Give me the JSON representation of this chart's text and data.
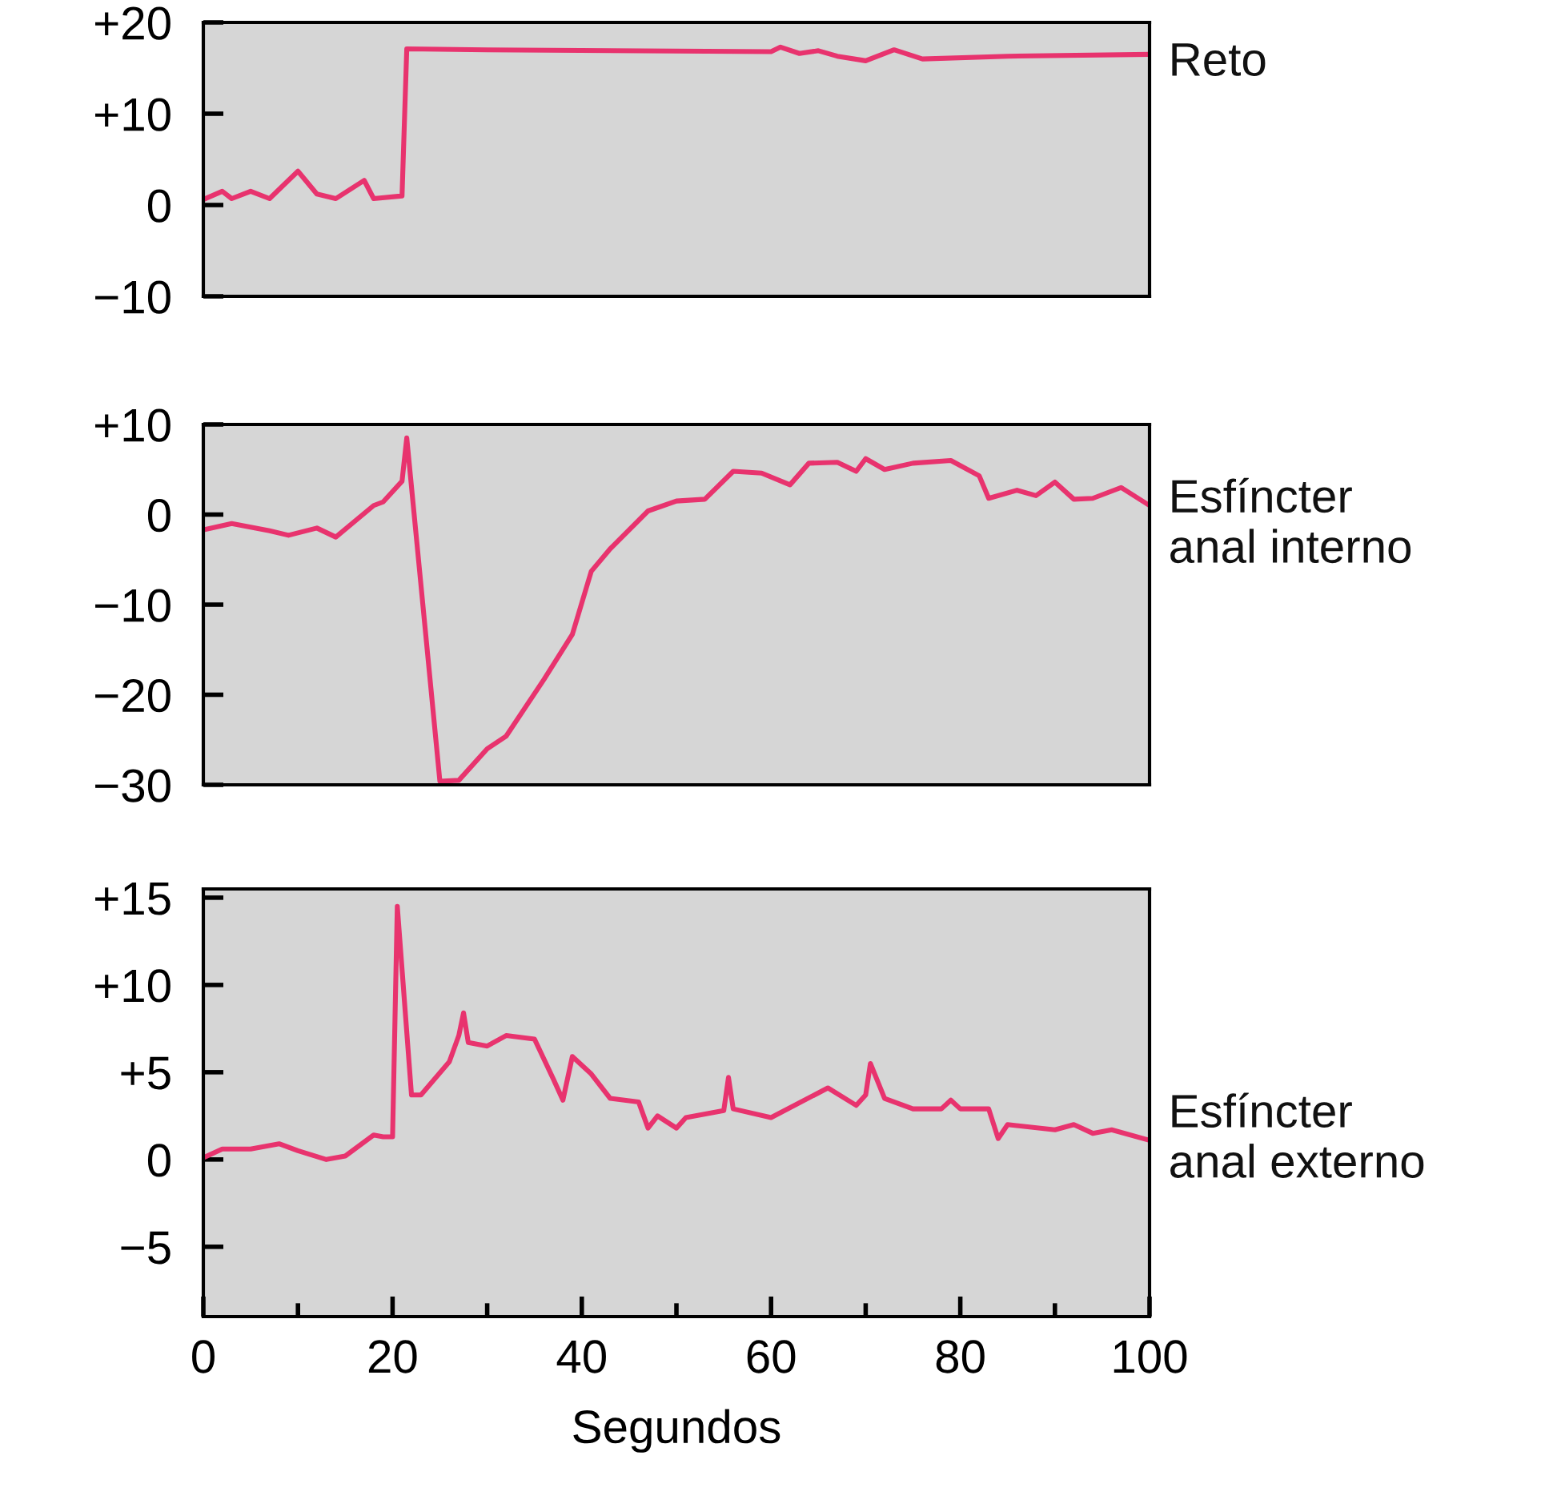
{
  "chart_data": [
    {
      "type": "line",
      "x": [
        0,
        2,
        3,
        5,
        7,
        10,
        12,
        14,
        17,
        18,
        21,
        21.5,
        30,
        60,
        61,
        63,
        65,
        67,
        70,
        73,
        76,
        85,
        100
      ],
      "series": [
        {
          "name": "Reto",
          "color": "#e8336e",
          "values": [
            0.6,
            1.5,
            0.7,
            1.5,
            0.7,
            3.7,
            1.2,
            0.7,
            2.7,
            0.7,
            1.0,
            17.1,
            17,
            16.8,
            17.3,
            16.6,
            16.9,
            16.3,
            15.8,
            17,
            16,
            16.3,
            16.5
          ]
        }
      ],
      "xlim": [
        0,
        100
      ],
      "ylim": [
        -10,
        20
      ],
      "yticks": [
        {
          "value": 20,
          "label": "+20"
        },
        {
          "value": 10,
          "label": "+10"
        },
        0,
        {
          "value": -10,
          "label": "−10"
        }
      ],
      "tick_labels": "y",
      "grid": false,
      "legend": false,
      "marker": "none",
      "line_style": "solid"
    },
    {
      "type": "line",
      "x": [
        0,
        3,
        7,
        9,
        12,
        14,
        18,
        19,
        21,
        21.5,
        25,
        27,
        30,
        32,
        36,
        39,
        41,
        43,
        47,
        50,
        53,
        56,
        59,
        62,
        64,
        67,
        69,
        70,
        72,
        75,
        79,
        82,
        83,
        86,
        88,
        90,
        92,
        94,
        97,
        100
      ],
      "series": [
        {
          "name": "Esfíncter\nanal interno",
          "color": "#e8336e",
          "values": [
            -1.7,
            -1,
            -1.8,
            -2.3,
            -1.5,
            -2.5,
            1,
            1.4,
            3.7,
            8.5,
            -29.6,
            -29.5,
            -26,
            -24.6,
            -18.3,
            -13.3,
            -6.3,
            -3.8,
            0.4,
            1.5,
            1.7,
            4.8,
            4.6,
            3.3,
            5.7,
            5.8,
            4.8,
            6.2,
            5,
            5.7,
            6,
            4.3,
            1.8,
            2.7,
            2.1,
            3.6,
            1.7,
            1.8,
            3,
            1
          ]
        }
      ],
      "xlim": [
        0,
        100
      ],
      "ylim": [
        -30,
        10
      ],
      "yticks": [
        {
          "value": 10,
          "label": "+10"
        },
        0,
        {
          "value": -10,
          "label": "−10"
        },
        {
          "value": -20,
          "label": "−20"
        },
        {
          "value": -30,
          "label": "−30"
        }
      ],
      "tick_labels": "y",
      "grid": false,
      "legend": false,
      "marker": "none",
      "line_style": "solid"
    },
    {
      "type": "line",
      "x": [
        0,
        2,
        5,
        8,
        10,
        13,
        15,
        18,
        19,
        20,
        20.5,
        22,
        23,
        26,
        27,
        27.5,
        28,
        30,
        32,
        35,
        37,
        38,
        39,
        41,
        43,
        46,
        47,
        48,
        50,
        51,
        55,
        55.5,
        56,
        60,
        66,
        69,
        70,
        70.5,
        72,
        75,
        78,
        79,
        80,
        83,
        84,
        85,
        90,
        92,
        94,
        96,
        100
      ],
      "series": [
        {
          "name": "Esfíncter\nanal externo",
          "color": "#e8336e",
          "values": [
            0.1,
            0.6,
            0.6,
            0.9,
            0.5,
            0,
            0.2,
            1.4,
            1.3,
            1.3,
            14.5,
            3.7,
            3.7,
            5.6,
            7.1,
            8.4,
            6.7,
            6.5,
            7.1,
            6.9,
            4.6,
            3.4,
            5.9,
            4.9,
            3.5,
            3.3,
            1.8,
            2.5,
            1.8,
            2.4,
            2.8,
            4.7,
            2.9,
            2.4,
            4.1,
            3.1,
            3.7,
            5.5,
            3.5,
            2.9,
            2.9,
            3.4,
            2.9,
            2.9,
            1.2,
            2,
            1.7,
            2,
            1.5,
            1.7,
            1.1
          ]
        }
      ],
      "xlim": [
        0,
        100
      ],
      "ylim": [
        -9,
        15.5
      ],
      "xticks": [
        0,
        {
          "value": 10,
          "label": null
        },
        20,
        {
          "value": 30,
          "label": null
        },
        40,
        {
          "value": 50,
          "label": null
        },
        60,
        {
          "value": 70,
          "label": null
        },
        80,
        {
          "value": 90,
          "label": null
        },
        100
      ],
      "yticks": [
        {
          "value": 15,
          "label": "+15"
        },
        {
          "value": 10,
          "label": "+10"
        },
        {
          "value": 5,
          "label": "+5"
        },
        0,
        {
          "value": -5,
          "label": "−5"
        }
      ],
      "xlabel": "Segundos",
      "grid": false,
      "legend": false,
      "marker": "none",
      "line_style": "solid"
    }
  ]
}
